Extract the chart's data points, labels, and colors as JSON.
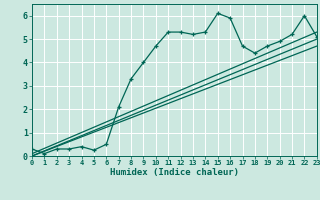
{
  "title": "",
  "xlabel": "Humidex (Indice chaleur)",
  "xlim": [
    0,
    23
  ],
  "ylim": [
    0,
    6.5
  ],
  "xticks": [
    0,
    1,
    2,
    3,
    4,
    5,
    6,
    7,
    8,
    9,
    10,
    11,
    12,
    13,
    14,
    15,
    16,
    17,
    18,
    19,
    20,
    21,
    22,
    23
  ],
  "yticks": [
    0,
    1,
    2,
    3,
    4,
    5,
    6
  ],
  "bg_color": "#cce8e0",
  "grid_color": "#ffffff",
  "line_color": "#006655",
  "main_x": [
    0,
    1,
    2,
    3,
    4,
    5,
    6,
    7,
    8,
    9,
    10,
    11,
    12,
    13,
    14,
    15,
    16,
    17,
    18,
    19,
    20,
    21,
    22,
    23
  ],
  "main_y": [
    0.3,
    0.1,
    0.3,
    0.3,
    0.4,
    0.25,
    0.5,
    2.1,
    3.3,
    4.0,
    4.7,
    5.3,
    5.3,
    5.2,
    5.3,
    6.1,
    5.9,
    4.7,
    4.4,
    4.7,
    4.9,
    5.2,
    6.0,
    5.1
  ],
  "trend1_x": [
    0,
    23
  ],
  "trend1_y": [
    0.0,
    5.0
  ],
  "trend2_x": [
    0,
    23
  ],
  "trend2_y": [
    0.1,
    5.3
  ],
  "trend3_x": [
    0,
    23
  ],
  "trend3_y": [
    0.0,
    4.7
  ]
}
